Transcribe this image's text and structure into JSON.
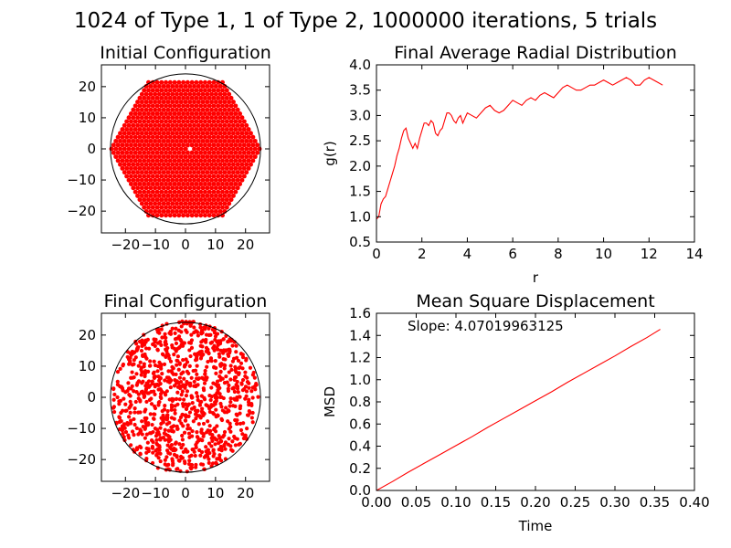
{
  "figure": {
    "suptitle": "1024 of Type 1, 1 of Type 2, 1000000 iterations, 5 trials",
    "colors": {
      "data": "#ff0000",
      "frame": "#000000",
      "background": "#ffffff"
    }
  },
  "chart_data": [
    {
      "id": "initial",
      "type": "scatter",
      "title": "Initial Configuration",
      "xlabel": "",
      "ylabel": "",
      "xlim": [
        -28,
        28
      ],
      "ylim": [
        -27,
        27
      ],
      "xticks": [
        -20,
        -10,
        0,
        10,
        20
      ],
      "yticks": [
        -20,
        -10,
        0,
        10,
        20
      ],
      "xtick_labels": [
        "−20",
        "−10",
        "0",
        "10",
        "20"
      ],
      "ytick_labels": [
        "−20",
        "−10",
        "0",
        "10",
        "20"
      ],
      "boundary_circle": {
        "cx": 0,
        "cy": 0,
        "r": 25
      },
      "lattice": {
        "type": "hexagonal",
        "count": 1024,
        "spacing": 1.45,
        "hexagon_circumradius": 25.5
      },
      "special_particle": {
        "x": 1.5,
        "y": 0,
        "color": "#ffffff"
      },
      "grid": false
    },
    {
      "id": "rdf",
      "type": "line",
      "title": "Final Average Radial Distribution",
      "xlabel": "r",
      "ylabel": "g(r)",
      "xlim": [
        0,
        14
      ],
      "ylim": [
        0.5,
        4.0
      ],
      "xticks": [
        0,
        2,
        4,
        6,
        8,
        10,
        12,
        14
      ],
      "yticks": [
        0.5,
        1.0,
        1.5,
        2.0,
        2.5,
        3.0,
        3.5,
        4.0
      ],
      "xtick_labels": [
        "0",
        "2",
        "4",
        "6",
        "8",
        "10",
        "12",
        "14"
      ],
      "ytick_labels": [
        "0.5",
        "1.0",
        "1.5",
        "2.0",
        "2.5",
        "3.0",
        "3.5",
        "4.0"
      ],
      "series": [
        {
          "x": [
            0.0,
            0.1,
            0.2,
            0.3,
            0.4,
            0.5,
            0.6,
            0.7,
            0.8,
            0.9,
            1.0,
            1.1,
            1.2,
            1.3,
            1.4,
            1.5,
            1.6,
            1.7,
            1.8,
            1.9,
            2.0,
            2.1,
            2.2,
            2.3,
            2.4,
            2.5,
            2.6,
            2.7,
            2.8,
            2.9,
            3.0,
            3.1,
            3.2,
            3.3,
            3.4,
            3.5,
            3.6,
            3.7,
            3.8,
            3.9,
            4.0,
            4.2,
            4.4,
            4.6,
            4.8,
            5.0,
            5.2,
            5.4,
            5.6,
            5.8,
            6.0,
            6.2,
            6.4,
            6.6,
            6.8,
            7.0,
            7.2,
            7.4,
            7.6,
            7.8,
            8.0,
            8.2,
            8.4,
            8.6,
            8.8,
            9.0,
            9.2,
            9.4,
            9.6,
            9.8,
            10.0,
            10.2,
            10.4,
            10.6,
            10.8,
            11.0,
            11.2,
            11.4,
            11.6,
            11.8,
            12.0,
            12.2,
            12.4,
            12.6
          ],
          "y": [
            0.95,
            1.0,
            1.25,
            1.35,
            1.4,
            1.55,
            1.7,
            1.85,
            2.0,
            2.2,
            2.35,
            2.55,
            2.7,
            2.75,
            2.55,
            2.45,
            2.35,
            2.45,
            2.35,
            2.55,
            2.7,
            2.85,
            2.85,
            2.8,
            2.9,
            2.85,
            2.65,
            2.6,
            2.7,
            2.75,
            2.9,
            3.05,
            3.05,
            3.0,
            2.9,
            2.85,
            2.95,
            3.0,
            2.85,
            2.95,
            3.05,
            3.0,
            2.95,
            3.05,
            3.15,
            3.2,
            3.1,
            3.05,
            3.1,
            3.2,
            3.3,
            3.25,
            3.2,
            3.3,
            3.35,
            3.3,
            3.4,
            3.45,
            3.4,
            3.35,
            3.45,
            3.55,
            3.6,
            3.55,
            3.5,
            3.5,
            3.55,
            3.6,
            3.6,
            3.65,
            3.7,
            3.65,
            3.6,
            3.65,
            3.7,
            3.75,
            3.7,
            3.6,
            3.6,
            3.7,
            3.75,
            3.7,
            3.65,
            3.6
          ]
        }
      ],
      "grid": false
    },
    {
      "id": "final",
      "type": "scatter",
      "title": "Final Configuration",
      "xlabel": "",
      "ylabel": "",
      "xlim": [
        -28,
        28
      ],
      "ylim": [
        -27,
        27
      ],
      "xticks": [
        -20,
        -10,
        0,
        10,
        20
      ],
      "yticks": [
        -20,
        -10,
        0,
        10,
        20
      ],
      "xtick_labels": [
        "−20",
        "−10",
        "0",
        "10",
        "20"
      ],
      "ytick_labels": [
        "−20",
        "−10",
        "0",
        "10",
        "20"
      ],
      "boundary_circle": {
        "cx": 0,
        "cy": 0,
        "r": 25
      },
      "points": {
        "count": 1024,
        "distribution": "uniform-disk",
        "radius": 24.5,
        "seed": 7
      },
      "grid": false
    },
    {
      "id": "msd",
      "type": "line",
      "title": "Mean Square Displacement",
      "xlabel": "Time",
      "ylabel": "MSD",
      "xlim": [
        0.0,
        0.4
      ],
      "ylim": [
        0.0,
        1.6
      ],
      "xticks": [
        0.0,
        0.05,
        0.1,
        0.15,
        0.2,
        0.25,
        0.3,
        0.35,
        0.4
      ],
      "yticks": [
        0.0,
        0.2,
        0.4,
        0.6,
        0.8,
        1.0,
        1.2,
        1.4,
        1.6
      ],
      "xtick_labels": [
        "0.00",
        "0.05",
        "0.10",
        "0.15",
        "0.20",
        "0.25",
        "0.30",
        "0.35",
        "0.40"
      ],
      "ytick_labels": [
        "0.0",
        "0.2",
        "0.4",
        "0.6",
        "0.8",
        "1.0",
        "1.2",
        "1.4",
        "1.6"
      ],
      "annotation": "Slope: 4.07019963125",
      "series": [
        {
          "x": [
            0.0,
            0.02,
            0.04,
            0.06,
            0.08,
            0.1,
            0.12,
            0.14,
            0.16,
            0.18,
            0.2,
            0.22,
            0.24,
            0.26,
            0.28,
            0.3,
            0.32,
            0.34,
            0.357
          ],
          "y": [
            0.0,
            0.08,
            0.165,
            0.245,
            0.325,
            0.405,
            0.485,
            0.57,
            0.65,
            0.73,
            0.81,
            0.89,
            0.975,
            1.055,
            1.135,
            1.215,
            1.3,
            1.38,
            1.455
          ]
        }
      ],
      "grid": false
    }
  ]
}
